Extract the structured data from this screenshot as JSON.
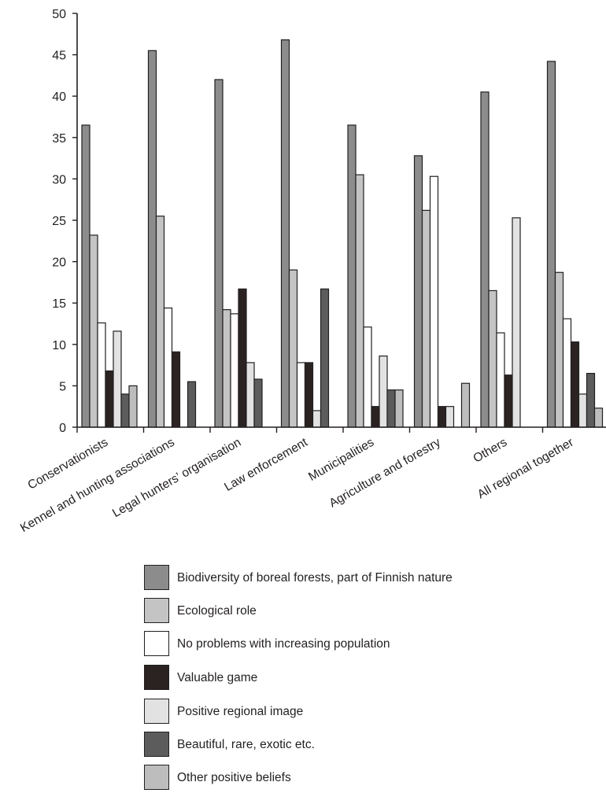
{
  "chart_data": {
    "type": "bar",
    "ylim": [
      0,
      50
    ],
    "yticks": [
      "0",
      "5",
      "10",
      "15",
      "20",
      "25",
      "30",
      "35",
      "40",
      "45",
      "50"
    ],
    "categories": [
      "Conservationists",
      "Kennel and hunting associations",
      "Legal hunters’ organisation",
      "Law enforcement",
      "Municipalities",
      "Agriculture and forestry",
      "Others",
      "All regional together"
    ],
    "series": [
      {
        "name": "Biodiversity of boreal forests, part of Finnish nature",
        "color": "#8c8c8c",
        "values": [
          36.5,
          45.5,
          42.0,
          46.8,
          36.5,
          32.8,
          40.5,
          44.2
        ]
      },
      {
        "name": "Ecological role",
        "color": "#c4c4c4",
        "values": [
          23.2,
          25.5,
          14.2,
          19.0,
          30.5,
          26.2,
          16.5,
          18.7
        ]
      },
      {
        "name": "No problems with increasing population",
        "color": "#ffffff",
        "values": [
          12.6,
          14.4,
          13.7,
          7.8,
          12.1,
          30.3,
          11.4,
          13.1
        ]
      },
      {
        "name": "Valuable game",
        "color": "#2a2322",
        "values": [
          6.8,
          9.1,
          16.7,
          7.8,
          2.5,
          2.5,
          6.3,
          10.3
        ]
      },
      {
        "name": "Positive regional image",
        "color": "#e2e2e2",
        "values": [
          11.6,
          0,
          7.8,
          2.0,
          8.6,
          2.5,
          25.3,
          4.0
        ]
      },
      {
        "name": "Beautiful, rare, exotic etc.",
        "color": "#5c5c5c",
        "values": [
          4.0,
          5.5,
          5.8,
          16.7,
          4.5,
          0,
          0,
          6.5
        ]
      },
      {
        "name": "Other positive beliefs",
        "color": "#bdbdbd",
        "values": [
          5.0,
          0,
          0,
          0,
          4.5,
          5.3,
          0,
          2.3
        ]
      }
    ],
    "legend_position": "bottom"
  }
}
